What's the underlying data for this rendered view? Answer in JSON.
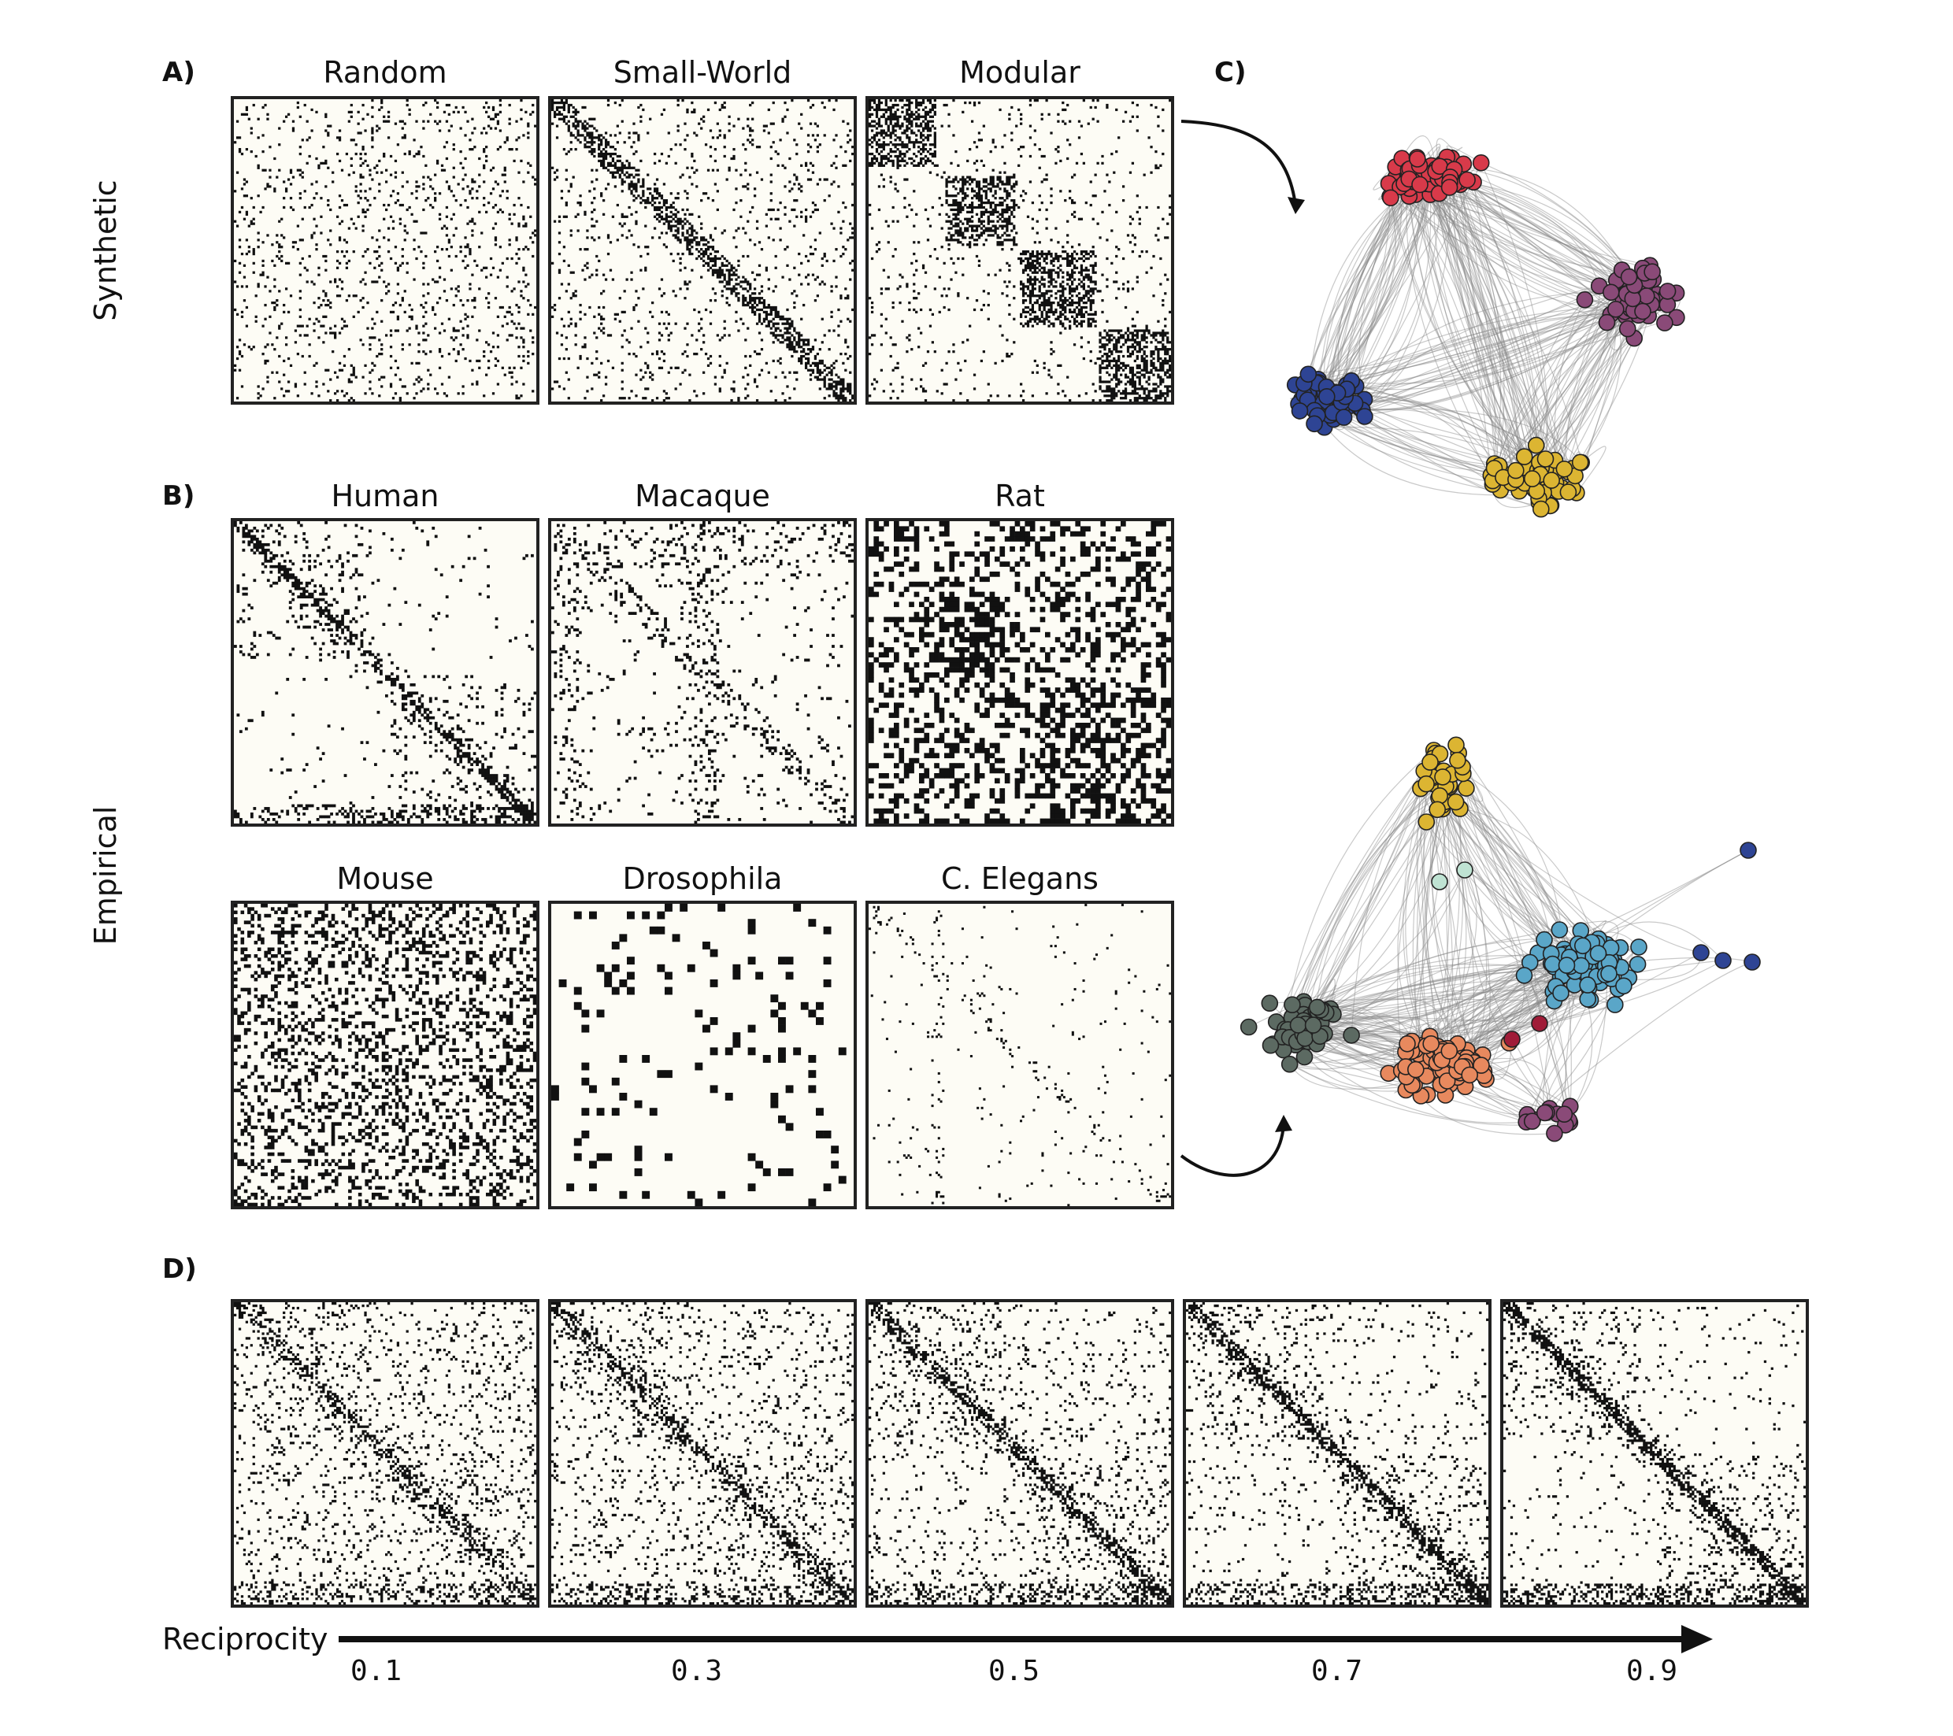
{
  "panels": {
    "A": {
      "letter": "A)",
      "row_label": "Synthetic",
      "matrices": [
        {
          "id": "random",
          "title": "Random"
        },
        {
          "id": "small-world",
          "title": "Small-World"
        },
        {
          "id": "modular",
          "title": "Modular"
        }
      ]
    },
    "B": {
      "letter": "B)",
      "row_label": "Empirical",
      "matrices": [
        {
          "id": "human",
          "title": "Human"
        },
        {
          "id": "macaque",
          "title": "Macaque"
        },
        {
          "id": "rat",
          "title": "Rat"
        },
        {
          "id": "mouse",
          "title": "Mouse"
        },
        {
          "id": "drosophila",
          "title": "Drosophila"
        },
        {
          "id": "c-elegans",
          "title": "C. Elegans"
        }
      ]
    },
    "C": {
      "letter": "C)"
    },
    "D": {
      "letter": "D)",
      "axis_label": "Reciprocity",
      "ticks": [
        "0.1",
        "0.3",
        "0.5",
        "0.7",
        "0.9"
      ]
    }
  },
  "colors": {
    "matrix_bg": "#fdfcf5",
    "dot": "#111111",
    "red": "#d83a4a",
    "purple": "#8a4a78",
    "blue": "#2e4494",
    "yellow": "#dcb532",
    "teal": "#5aa6c8",
    "orange": "#e8895e",
    "gray": "#5c6a62",
    "mint": "#bfe3d3",
    "crimson": "#a01c38"
  }
}
